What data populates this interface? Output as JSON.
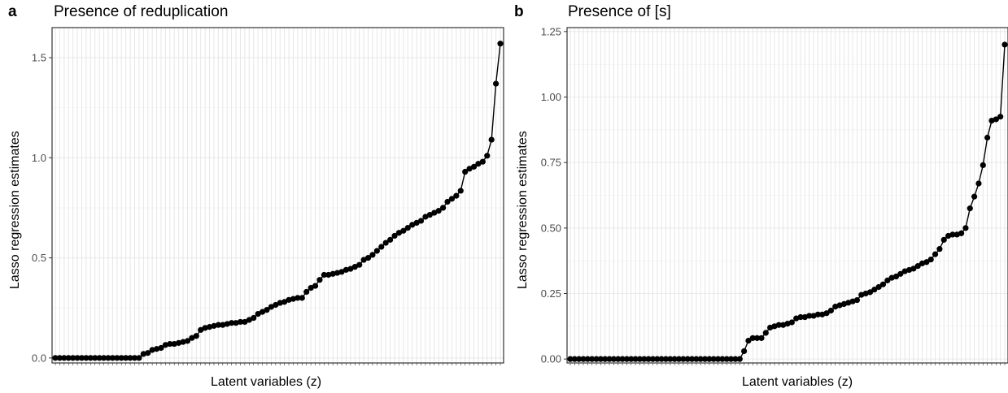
{
  "chart_data": [
    {
      "panel_letter": "a",
      "type": "line",
      "title": "Presence of reduplication",
      "xlabel": "Latent variables (z)",
      "ylabel": "Lasso regression estimates",
      "ylim": [
        -0.025,
        1.65
      ],
      "yticks": [
        0.0,
        0.5,
        1.0,
        1.5
      ],
      "ytick_labels": [
        "0.0",
        "0.5",
        "1.0",
        "1.5"
      ],
      "grid": true,
      "n_points": 100,
      "values": [
        0,
        0,
        0,
        0,
        0,
        0,
        0,
        0,
        0,
        0,
        0,
        0,
        0,
        0,
        0,
        0,
        0,
        0,
        0,
        0,
        0.02,
        0.025,
        0.04,
        0.045,
        0.05,
        0.065,
        0.07,
        0.07,
        0.075,
        0.08,
        0.085,
        0.1,
        0.11,
        0.14,
        0.15,
        0.155,
        0.16,
        0.165,
        0.165,
        0.17,
        0.175,
        0.175,
        0.18,
        0.18,
        0.19,
        0.2,
        0.22,
        0.23,
        0.24,
        0.255,
        0.265,
        0.275,
        0.28,
        0.29,
        0.295,
        0.3,
        0.3,
        0.33,
        0.35,
        0.36,
        0.39,
        0.415,
        0.415,
        0.42,
        0.425,
        0.43,
        0.44,
        0.445,
        0.455,
        0.465,
        0.49,
        0.5,
        0.515,
        0.535,
        0.555,
        0.575,
        0.59,
        0.61,
        0.625,
        0.635,
        0.65,
        0.665,
        0.675,
        0.685,
        0.705,
        0.715,
        0.725,
        0.735,
        0.75,
        0.78,
        0.795,
        0.81,
        0.835,
        0.93,
        0.945,
        0.955,
        0.97,
        0.98,
        1.01,
        1.09,
        1.37,
        1.57
      ]
    },
    {
      "panel_letter": "b",
      "type": "line",
      "title": "Presence of [s]",
      "xlabel": "Latent variables (z)",
      "ylabel": "Lasso regression estimates",
      "ylim": [
        -0.015,
        1.265
      ],
      "yticks": [
        0.0,
        0.25,
        0.5,
        0.75,
        1.0,
        1.25
      ],
      "ytick_labels": [
        "0.00",
        "0.25",
        "0.50",
        "0.75",
        "1.00",
        "1.25"
      ],
      "grid": true,
      "n_points": 100,
      "values": [
        0,
        0,
        0,
        0,
        0,
        0,
        0,
        0,
        0,
        0,
        0,
        0,
        0,
        0,
        0,
        0,
        0,
        0,
        0,
        0,
        0,
        0,
        0,
        0,
        0,
        0,
        0,
        0,
        0,
        0,
        0,
        0,
        0,
        0,
        0,
        0,
        0,
        0,
        0,
        0,
        0.03,
        0.07,
        0.08,
        0.08,
        0.08,
        0.1,
        0.12,
        0.125,
        0.13,
        0.13,
        0.135,
        0.14,
        0.155,
        0.16,
        0.16,
        0.165,
        0.165,
        0.17,
        0.17,
        0.175,
        0.185,
        0.2,
        0.205,
        0.21,
        0.215,
        0.22,
        0.225,
        0.245,
        0.25,
        0.255,
        0.265,
        0.275,
        0.285,
        0.3,
        0.31,
        0.315,
        0.325,
        0.335,
        0.34,
        0.345,
        0.355,
        0.365,
        0.37,
        0.38,
        0.4,
        0.42,
        0.455,
        0.47,
        0.475,
        0.475,
        0.48,
        0.5,
        0.575,
        0.62,
        0.67,
        0.74,
        0.845,
        0.91,
        0.915,
        0.925,
        1.2
      ]
    }
  ]
}
